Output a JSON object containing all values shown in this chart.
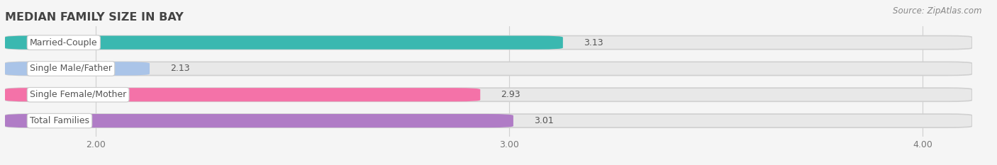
{
  "title": "MEDIAN FAMILY SIZE IN BAY",
  "source": "Source: ZipAtlas.com",
  "categories": [
    "Married-Couple",
    "Single Male/Father",
    "Single Female/Mother",
    "Total Families"
  ],
  "values": [
    3.13,
    2.13,
    2.93,
    3.01
  ],
  "bar_colors": [
    "#3ab8b0",
    "#aac4e8",
    "#f472a8",
    "#b07cc6"
  ],
  "bar_bg_color": "#e8e8e8",
  "xlim_min": 1.78,
  "xlim_max": 4.12,
  "xmin": 2.0,
  "xticks": [
    2.0,
    3.0,
    4.0
  ],
  "xtick_labels": [
    "2.00",
    "3.00",
    "4.00"
  ],
  "background_color": "#f5f5f5",
  "title_fontsize": 11.5,
  "label_fontsize": 9,
  "value_fontsize": 9,
  "source_fontsize": 8.5,
  "bar_height": 0.52,
  "label_bg_color": "#ffffff",
  "grid_color": "#d0d0d0",
  "text_color": "#555555",
  "title_color": "#444444"
}
